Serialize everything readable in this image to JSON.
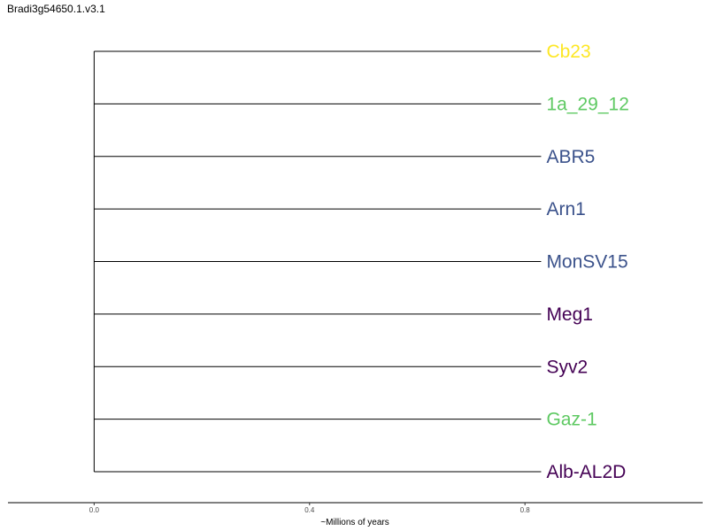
{
  "title": "Bradi3g54650.1.v3.1",
  "chart_data": {
    "type": "phylogenetic-tree",
    "xlabel": "~Millions of years",
    "ticks": [
      {
        "value": 0.0,
        "label": "0.0"
      },
      {
        "value": 0.4,
        "label": "0.4"
      },
      {
        "value": 0.8,
        "label": "0.8"
      }
    ],
    "xlim": [
      -0.16,
      1.13
    ],
    "branch_length": 0.83,
    "leaves": [
      {
        "name": "Cb23",
        "color": "#fde725"
      },
      {
        "name": "1a_29_12",
        "color": "#5ec962"
      },
      {
        "name": "ABR5",
        "color": "#3b528b"
      },
      {
        "name": "Arn1",
        "color": "#3b528b"
      },
      {
        "name": "MonSV15",
        "color": "#3b528b"
      },
      {
        "name": "Meg1",
        "color": "#440154"
      },
      {
        "name": "Syv2",
        "color": "#440154"
      },
      {
        "name": "Gaz-1",
        "color": "#5ec962"
      },
      {
        "name": "Alb-AL2D",
        "color": "#440154"
      }
    ]
  }
}
